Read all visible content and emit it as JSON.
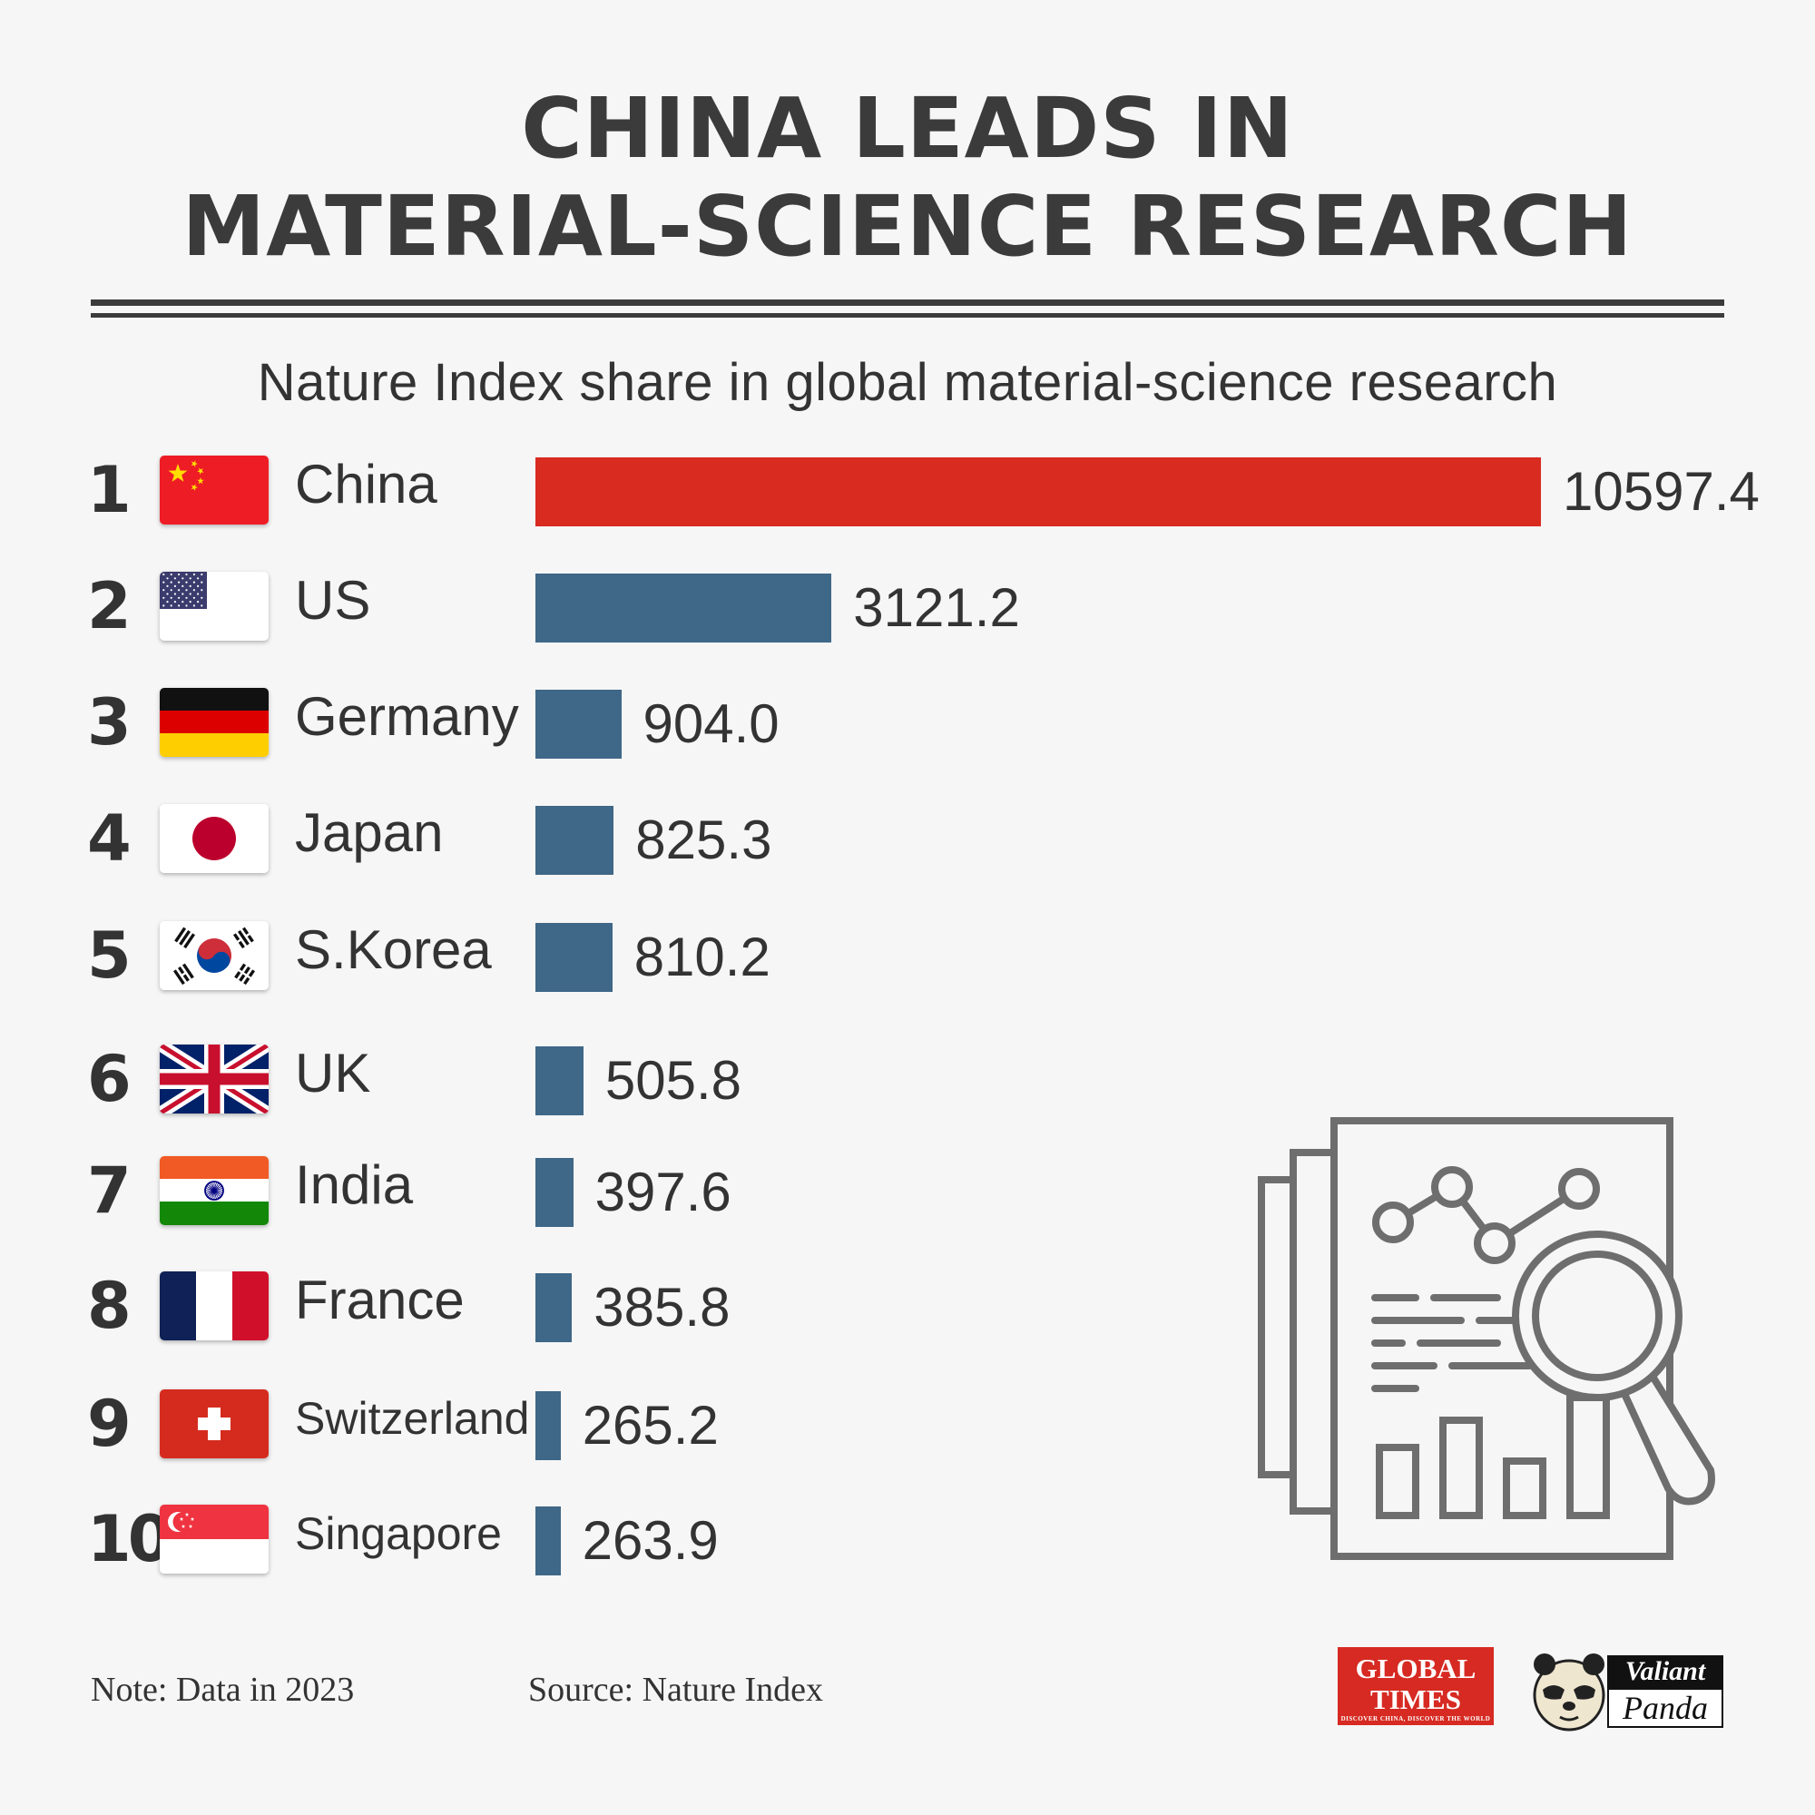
{
  "title": {
    "line1": "CHINA LEADS IN",
    "line2": "MATERIAL-SCIENCE RESEARCH"
  },
  "subtitle": "Nature Index share in global material-science research",
  "chart_data": {
    "type": "bar",
    "orientation": "horizontal",
    "title": "Nature Index share in global material-science research",
    "categories": [
      "China",
      "US",
      "Germany",
      "Japan",
      "S.Korea",
      "UK",
      "India",
      "France",
      "Switzerland",
      "Singapore"
    ],
    "ranks": [
      "1",
      "2",
      "3",
      "4",
      "5",
      "6",
      "7",
      "8",
      "9",
      "10"
    ],
    "values": [
      10597.4,
      3121.2,
      904.0,
      825.3,
      810.2,
      505.8,
      397.6,
      385.8,
      265.2,
      263.9
    ],
    "value_labels": [
      "10597.4",
      "3121.2",
      "904.0",
      "825.3",
      "810.2",
      "505.8",
      "397.6",
      "385.8",
      "265.2",
      "263.9"
    ],
    "highlight_color": "#d92b20",
    "bar_color": "#3f6787",
    "xlim": [
      0,
      10597.4
    ]
  },
  "footer": {
    "note": "Note: Data in 2023",
    "source": "Source: Nature Index"
  },
  "logos": {
    "global_times": {
      "line1": "GLOBAL",
      "line2": "TIMES",
      "tagline": "DISCOVER CHINA, DISCOVER THE WORLD",
      "color": "#d62a22"
    },
    "valiant_panda": {
      "word1": "Valiant",
      "word2": "Panda"
    }
  },
  "illustration": {
    "icon": "report-analysis-icon",
    "stroke_color": "#6e6e6e"
  }
}
